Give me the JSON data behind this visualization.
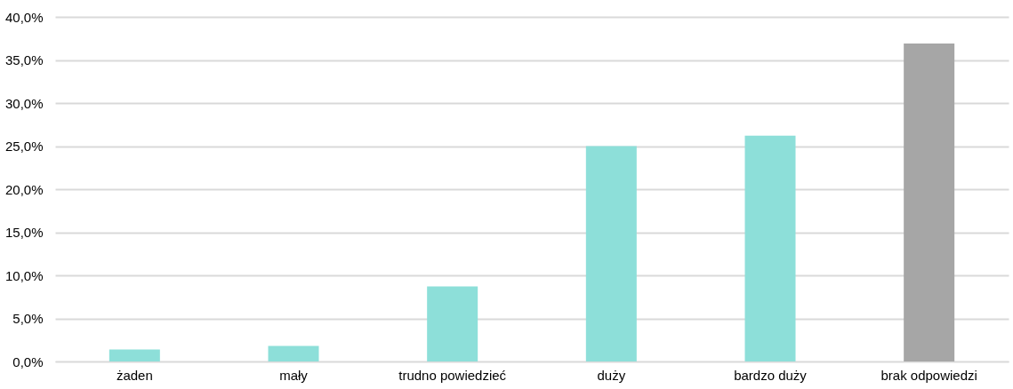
{
  "chart_data": {
    "type": "bar",
    "categories": [
      "żaden",
      "mały",
      "trudno powiedzieć",
      "duży",
      "bardzo duży",
      "brak odpowiedzi"
    ],
    "values": [
      1.4,
      1.8,
      8.7,
      25.0,
      26.2,
      36.9
    ],
    "colors": [
      "#8ddfd9",
      "#8ddfd9",
      "#8ddfd9",
      "#8ddfd9",
      "#8ddfd9",
      "#a6a6a6"
    ],
    "ylim": [
      0,
      40
    ],
    "yticks": [
      {
        "value": 0,
        "label": "0,0%"
      },
      {
        "value": 5,
        "label": "5,0%"
      },
      {
        "value": 10,
        "label": "10,0%"
      },
      {
        "value": 15,
        "label": "15,0%"
      },
      {
        "value": 20,
        "label": "20,0%"
      },
      {
        "value": 25,
        "label": "25,0%"
      },
      {
        "value": 30,
        "label": "30,0%"
      },
      {
        "value": 35,
        "label": "35,0%"
      },
      {
        "value": 40,
        "label": "40,0%"
      }
    ],
    "grid": "y"
  }
}
